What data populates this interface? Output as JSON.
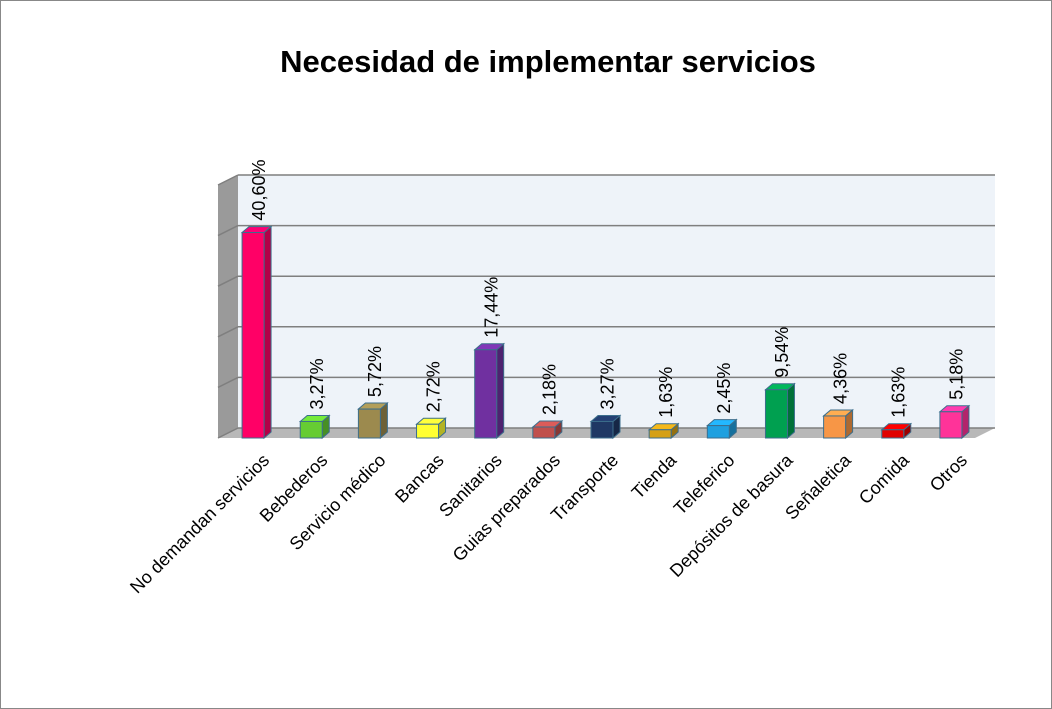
{
  "chart_data": {
    "type": "bar",
    "title": "Necesidad de implementar servicios",
    "categories": [
      "No demandan servicios",
      "Bebederos",
      "Servicio médico",
      "Bancas",
      "Sanitarios",
      "Guias preparados",
      "Transporte",
      "Tienda",
      "Teleferico",
      "Depósitos de basura",
      "Señaletica",
      "Comida",
      "Otros"
    ],
    "values": [
      40.6,
      3.27,
      5.72,
      2.72,
      17.44,
      2.18,
      3.27,
      1.63,
      2.45,
      9.54,
      4.36,
      1.63,
      5.18
    ],
    "value_labels": [
      "40,60%",
      "3,27%",
      "5,72%",
      "2,72%",
      "17,44%",
      "2,18%",
      "3,27%",
      "1,63%",
      "2,45%",
      "9,54%",
      "4,36%",
      "1,63%",
      "5,18%"
    ],
    "colors": [
      "#ff0066",
      "#66cc33",
      "#9c8a4e",
      "#ffff33",
      "#7030a0",
      "#c0504d",
      "#1f3864",
      "#d4a017",
      "#1ea0e0",
      "#00a050",
      "#f79646",
      "#e00000",
      "#ff3399"
    ],
    "ylim": [
      0,
      50
    ],
    "yticks": [
      0,
      10,
      20,
      30,
      40,
      50
    ],
    "grid": true
  }
}
